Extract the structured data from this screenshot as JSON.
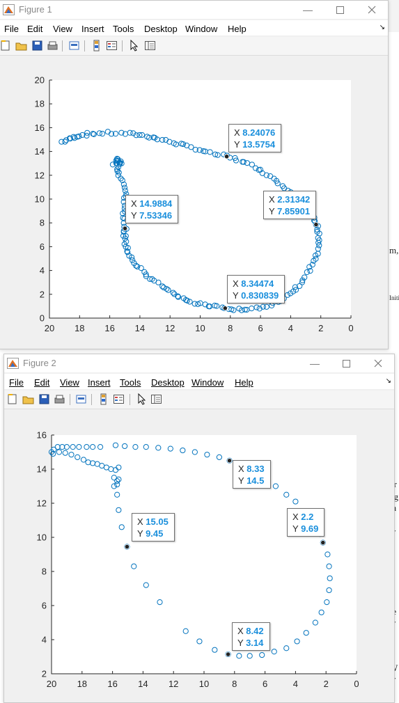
{
  "figures": [
    {
      "title": "Figure 1",
      "menu": [
        "File",
        "Edit",
        "View",
        "Insert",
        "Tools",
        "Desktop",
        "Window",
        "Help"
      ],
      "menu_underline": false,
      "chart_data": {
        "type": "scatter",
        "title": "",
        "xlabel": "",
        "ylabel": "",
        "xlim": [
          20,
          0
        ],
        "ylim": [
          0,
          20
        ],
        "x_reversed": true,
        "xticks": [
          20,
          18,
          16,
          14,
          12,
          10,
          8,
          6,
          4,
          2,
          0
        ],
        "yticks": [
          0,
          2,
          4,
          6,
          8,
          10,
          12,
          14,
          16,
          18,
          20
        ],
        "marker": "open-circle",
        "color": "#0072bd",
        "path": [
          [
            19.2,
            14.8
          ],
          [
            18.6,
            15.1
          ],
          [
            18,
            15.35
          ],
          [
            17.2,
            15.5
          ],
          [
            16.2,
            15.55
          ],
          [
            15,
            15.5
          ],
          [
            14,
            15.4
          ],
          [
            13.2,
            15.2
          ],
          [
            12.3,
            14.9
          ],
          [
            11.3,
            14.6
          ],
          [
            10.3,
            14.25
          ],
          [
            9.4,
            13.85
          ],
          [
            8.24,
            13.5754
          ],
          [
            7.3,
            13.2
          ],
          [
            6.4,
            12.7
          ],
          [
            5.6,
            12.1
          ],
          [
            4.8,
            11.4
          ],
          [
            4.0,
            10.6
          ],
          [
            3.2,
            9.6
          ],
          [
            2.6,
            8.6
          ],
          [
            2.31342,
            7.85901
          ],
          [
            2.1,
            7.0
          ],
          [
            2.1,
            6.0
          ],
          [
            2.3,
            5.0
          ],
          [
            2.8,
            4.0
          ],
          [
            3.3,
            3.0
          ],
          [
            3.9,
            2.2
          ],
          [
            4.6,
            1.5
          ],
          [
            5.6,
            1.0
          ],
          [
            6.6,
            0.8
          ],
          [
            7.5,
            0.75
          ],
          [
            8.34474,
            0.830839
          ],
          [
            9.3,
            1.0
          ],
          [
            10.2,
            1.2
          ],
          [
            11.0,
            1.5
          ],
          [
            11.7,
            2.0
          ],
          [
            12.4,
            2.6
          ],
          [
            13.2,
            3.2
          ],
          [
            13.8,
            3.9
          ],
          [
            14.4,
            4.7
          ],
          [
            14.8,
            5.5
          ],
          [
            15.0,
            6.3
          ],
          [
            15.0,
            7.0
          ],
          [
            14.9884,
            7.53346
          ],
          [
            15.1,
            8.5
          ],
          [
            15.1,
            9.5
          ],
          [
            15.0,
            10.5
          ],
          [
            15.2,
            11.5
          ],
          [
            15.5,
            12.4
          ],
          [
            15.3,
            13.0
          ],
          [
            15.6,
            13.4
          ],
          [
            15.3,
            13.1
          ],
          [
            15.8,
            12.9
          ]
        ],
        "jitter": 0.22,
        "datatips": [
          {
            "x": "8.24076",
            "y": "13.5754"
          },
          {
            "x": "2.31342",
            "y": "7.85901"
          },
          {
            "x": "14.9884",
            "y": "7.53346"
          },
          {
            "x": "8.34474",
            "y": "0.830839"
          }
        ]
      }
    },
    {
      "title": "Figure 2",
      "menu": [
        "File",
        "Edit",
        "View",
        "Insert",
        "Tools",
        "Desktop",
        "Window",
        "Help"
      ],
      "menu_underline": true,
      "chart_data": {
        "type": "scatter",
        "title": "",
        "xlabel": "",
        "ylabel": "",
        "xlim": [
          20,
          0
        ],
        "ylim": [
          2,
          16
        ],
        "x_reversed": true,
        "xticks": [
          20,
          18,
          16,
          14,
          12,
          10,
          8,
          6,
          4,
          2,
          0
        ],
        "yticks": [
          2,
          4,
          6,
          8,
          10,
          12,
          14,
          16
        ],
        "marker": "open-circle",
        "color": "#0072bd",
        "points": [
          [
            20,
            15.0
          ],
          [
            19.85,
            15.15
          ],
          [
            19.6,
            15.3
          ],
          [
            19.3,
            15.3
          ],
          [
            19.0,
            15.3
          ],
          [
            18.6,
            15.3
          ],
          [
            18.2,
            15.3
          ],
          [
            17.7,
            15.3
          ],
          [
            17.3,
            15.3
          ],
          [
            16.8,
            15.3
          ],
          [
            15.8,
            15.4
          ],
          [
            15.2,
            15.35
          ],
          [
            14.5,
            15.3
          ],
          [
            13.8,
            15.3
          ],
          [
            13.0,
            15.25
          ],
          [
            12.2,
            15.2
          ],
          [
            11.4,
            15.1
          ],
          [
            10.6,
            15.0
          ],
          [
            9.8,
            14.85
          ],
          [
            9.0,
            14.7
          ],
          [
            8.33,
            14.5
          ],
          [
            7.6,
            14.2
          ],
          [
            6.8,
            13.8
          ],
          [
            6.0,
            13.4
          ],
          [
            5.3,
            13.0
          ],
          [
            4.6,
            12.5
          ],
          [
            4.0,
            12.1
          ],
          [
            3.4,
            11.4
          ],
          [
            2.9,
            10.6
          ],
          [
            2.4,
            10.2
          ],
          [
            2.2,
            9.69
          ],
          [
            1.9,
            9.0
          ],
          [
            1.8,
            8.3
          ],
          [
            1.75,
            7.6
          ],
          [
            1.8,
            6.9
          ],
          [
            1.95,
            6.2
          ],
          [
            2.3,
            5.6
          ],
          [
            2.7,
            5.0
          ],
          [
            3.3,
            4.4
          ],
          [
            3.9,
            3.9
          ],
          [
            4.6,
            3.5
          ],
          [
            5.4,
            3.3
          ],
          [
            6.2,
            3.1
          ],
          [
            7.0,
            3.05
          ],
          [
            7.7,
            3.05
          ],
          [
            8.42,
            3.14
          ],
          [
            9.3,
            3.4
          ],
          [
            10.3,
            3.9
          ],
          [
            11.2,
            4.5
          ],
          [
            12.9,
            6.2
          ],
          [
            13.8,
            7.2
          ],
          [
            14.6,
            8.3
          ],
          [
            15.05,
            9.45
          ],
          [
            15.4,
            10.6
          ],
          [
            15.6,
            11.6
          ],
          [
            15.7,
            12.5
          ],
          [
            15.9,
            13.0
          ],
          [
            15.7,
            13.3
          ],
          [
            15.9,
            13.5
          ],
          [
            15.7,
            13.1
          ],
          [
            15.6,
            13.4
          ],
          [
            19.9,
            14.9
          ],
          [
            19.5,
            15.0
          ],
          [
            19.1,
            14.95
          ],
          [
            18.7,
            14.85
          ],
          [
            18.3,
            14.7
          ],
          [
            17.9,
            14.55
          ],
          [
            17.6,
            14.4
          ],
          [
            17.3,
            14.35
          ],
          [
            17.0,
            14.3
          ],
          [
            16.7,
            14.2
          ],
          [
            16.4,
            14.1
          ],
          [
            16.1,
            14.0
          ],
          [
            15.8,
            13.95
          ],
          [
            15.6,
            14.1
          ]
        ],
        "datatips": [
          {
            "x": "8.33",
            "y": "14.5"
          },
          {
            "x": "2.2",
            "y": "9.69"
          },
          {
            "x": "15.05",
            "y": "9.45"
          },
          {
            "x": "8.42",
            "y": "3.14"
          }
        ]
      }
    }
  ]
}
